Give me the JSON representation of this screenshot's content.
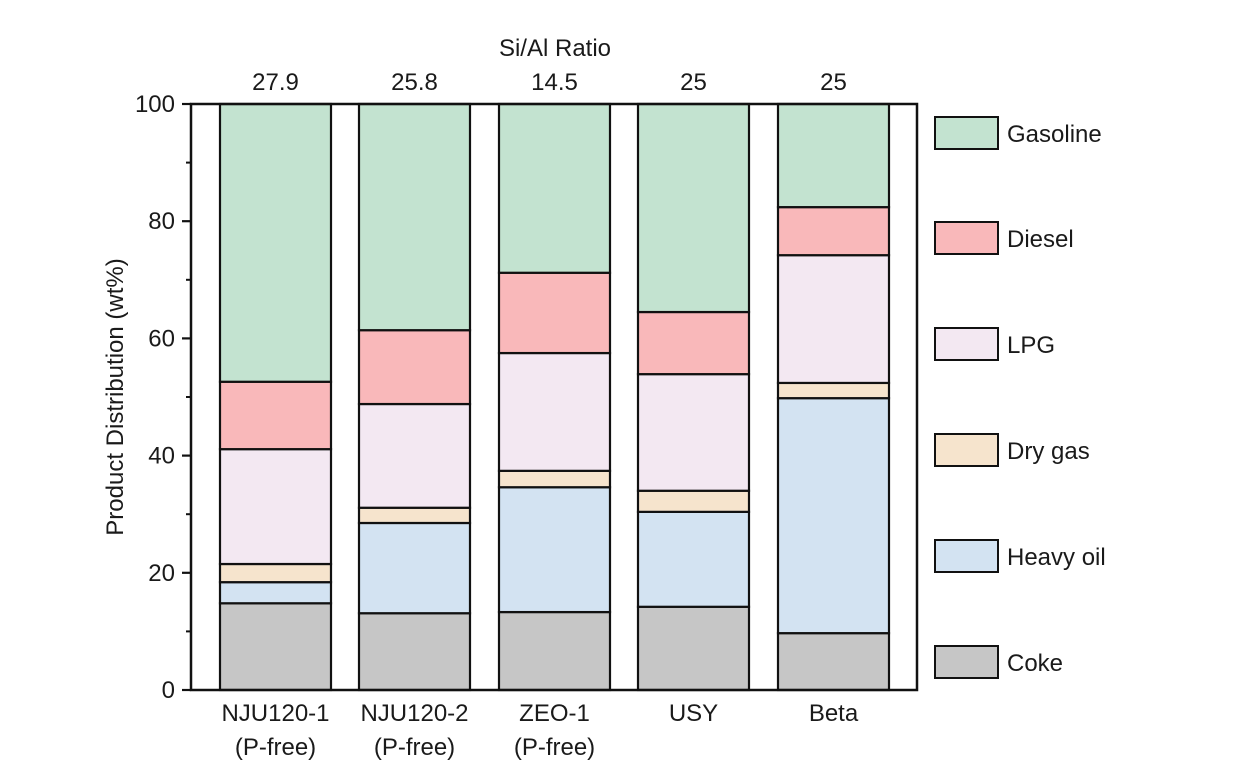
{
  "chart_data": {
    "type": "bar",
    "stacked": true,
    "title": "",
    "top_axis_title": "Si/Al Ratio",
    "top_axis_labels": [
      "27.9",
      "25.8",
      "14.5",
      "25",
      "25"
    ],
    "ylabel": "Product Distribution (wt%)",
    "xlabel": "",
    "ylim": [
      0,
      100
    ],
    "yticks": [
      0,
      20,
      40,
      60,
      80,
      100
    ],
    "yticks_minor": [
      10,
      30,
      50,
      70,
      90
    ],
    "grid": false,
    "legend_position": "right",
    "categories": [
      [
        "NJU120-1",
        "(P-free)"
      ],
      [
        "NJU120-2",
        "(P-free)"
      ],
      [
        "ZEO-1",
        "(P-free)"
      ],
      [
        "USY"
      ],
      [
        "Beta"
      ]
    ],
    "series": [
      {
        "name": "Coke",
        "color": "#c6c6c6",
        "values": [
          14.8,
          13.1,
          13.3,
          14.2,
          9.7
        ]
      },
      {
        "name": "Heavy oil",
        "color": "#d3e3f2",
        "values": [
          3.6,
          15.4,
          21.3,
          16.2,
          40.1
        ]
      },
      {
        "name": "Dry gas",
        "color": "#f6e4cd",
        "values": [
          3.1,
          2.6,
          2.8,
          3.6,
          2.6
        ]
      },
      {
        "name": "LPG",
        "color": "#f3e8f2",
        "values": [
          19.6,
          17.7,
          20.1,
          19.9,
          21.8
        ]
      },
      {
        "name": "Diesel",
        "color": "#f9b8ba",
        "values": [
          11.5,
          12.6,
          13.7,
          10.6,
          8.2
        ]
      },
      {
        "name": "Gasoline",
        "color": "#c3e3d0",
        "values": [
          47.4,
          38.6,
          28.8,
          35.5,
          17.6
        ]
      }
    ],
    "legend_order": [
      "Gasoline",
      "Diesel",
      "LPG",
      "Dry gas",
      "Heavy oil",
      "Coke"
    ]
  }
}
